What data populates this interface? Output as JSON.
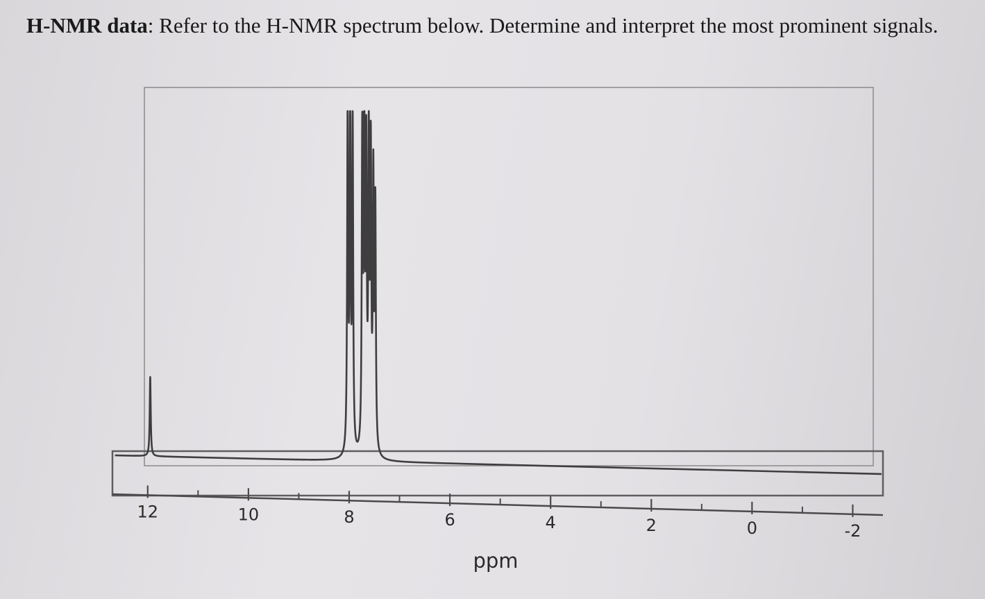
{
  "question": {
    "bold": "H-NMR data",
    "text": ": Refer to the H-NMR spectrum below. Determine and interpret the most prominent signals."
  },
  "colors": {
    "ink": "#3e3e3e",
    "frame": "#6b6b6b",
    "paper": "#e4e2e5"
  },
  "chart_data": {
    "type": "line",
    "title": "",
    "xlabel": "ppm",
    "ylabel": "",
    "x_reversed": true,
    "xlim": [
      12.7,
      -2.6
    ],
    "x_ticks": [
      12,
      10,
      8,
      6,
      4,
      2,
      0,
      -2
    ],
    "x_tick_labels": [
      "12",
      "10",
      "8",
      "6",
      "4",
      "2",
      "0",
      "-2"
    ],
    "x_minor_ticks": [
      11,
      9,
      7,
      5,
      3,
      1,
      -1
    ],
    "ylim": [
      0,
      100
    ],
    "grid": false,
    "legend": "none",
    "series": [
      {
        "peaks": [
          {
            "ppm": 11.95,
            "height": 23
          },
          {
            "ppm": 8.03,
            "height": 97
          },
          {
            "ppm": 7.98,
            "height": 98
          },
          {
            "ppm": 7.93,
            "height": 93
          },
          {
            "ppm": 7.74,
            "height": 88
          },
          {
            "ppm": 7.7,
            "height": 93
          },
          {
            "ppm": 7.66,
            "height": 82
          },
          {
            "ppm": 7.61,
            "height": 86
          },
          {
            "ppm": 7.57,
            "height": 82
          },
          {
            "ppm": 7.52,
            "height": 76
          },
          {
            "ppm": 7.48,
            "height": 69
          }
        ]
      }
    ]
  }
}
